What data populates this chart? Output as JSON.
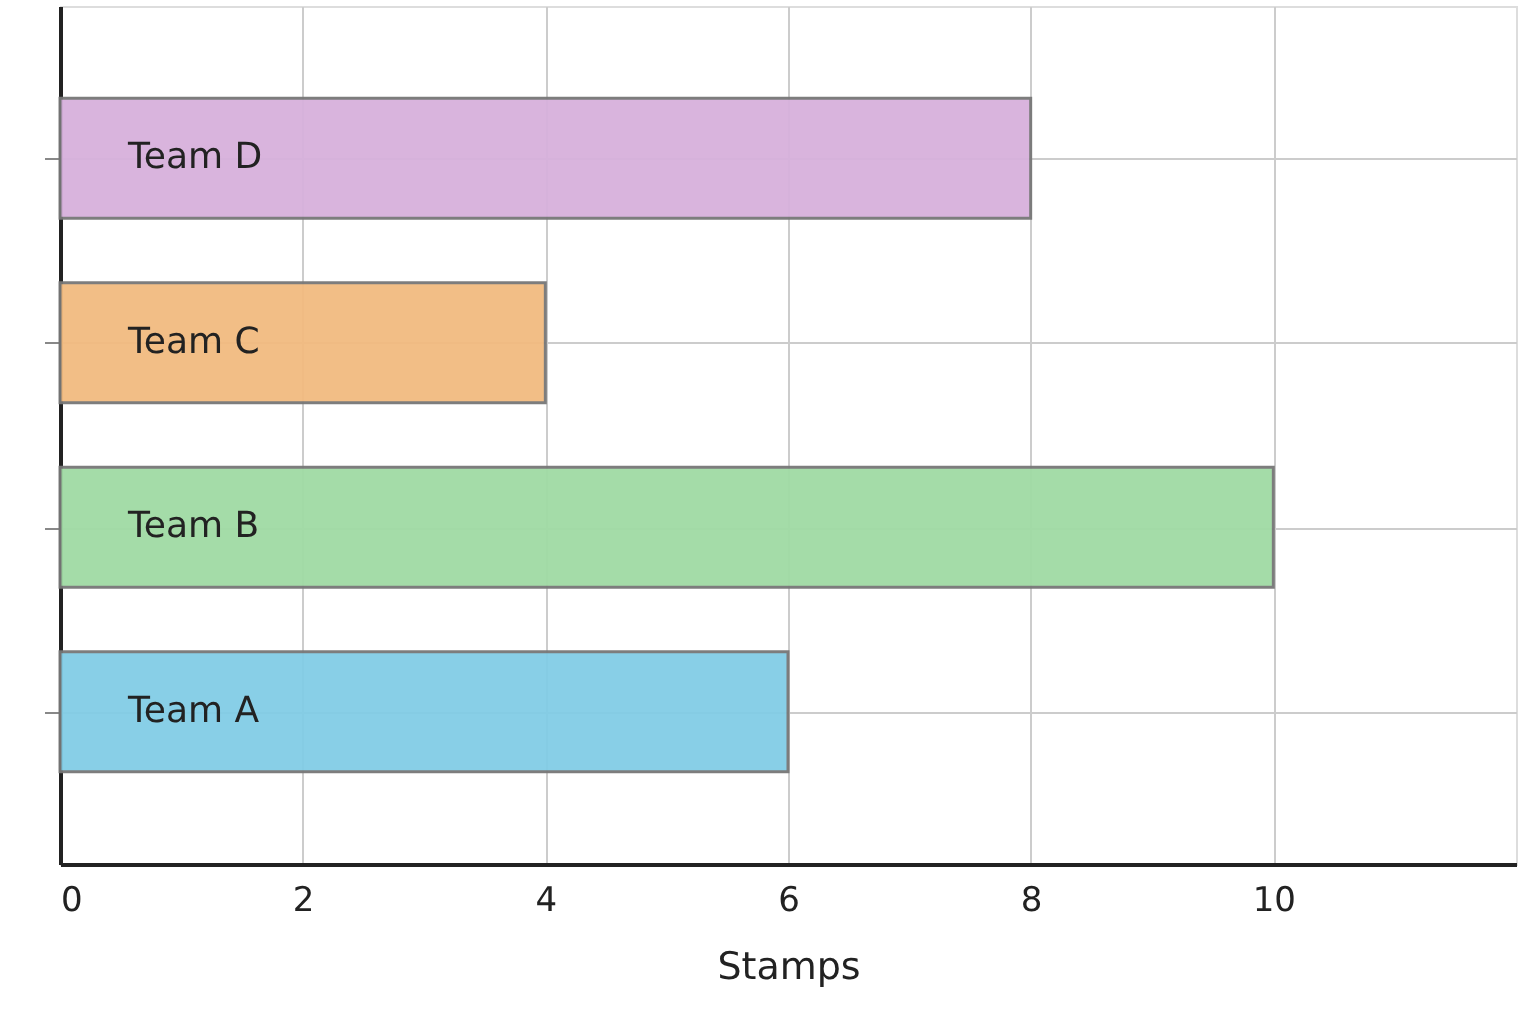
{
  "chart_data": {
    "type": "bar",
    "orientation": "horizontal",
    "xlabel": "Stamps",
    "categories": [
      "Team D",
      "Team C",
      "Team B",
      "Team A"
    ],
    "values": [
      8,
      4,
      10,
      6
    ],
    "colors": [
      "#d7b1dc",
      "#f2bb80",
      "#a0dba4",
      "#82cde6"
    ],
    "xlim": [
      0,
      12
    ],
    "xticks": [
      0,
      2,
      4,
      6,
      8,
      10
    ],
    "grid": true
  }
}
